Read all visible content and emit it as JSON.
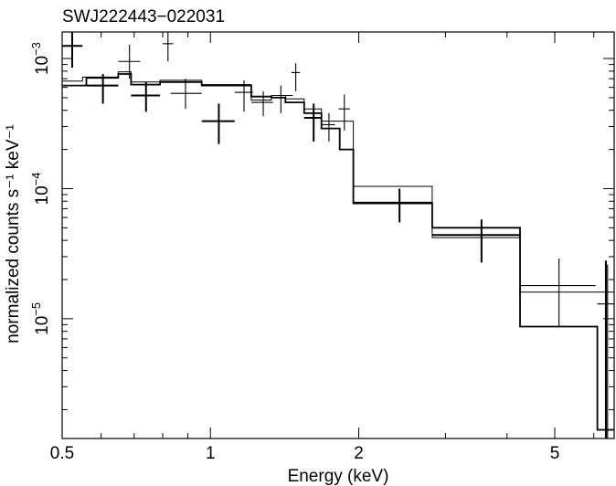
{
  "chart_data": {
    "type": "scatter",
    "title": "SWJ222443−022031",
    "xlabel": "Energy (keV)",
    "ylabel": "normalized counts s⁻¹ keV⁻¹",
    "x_scale": "log",
    "y_scale": "log",
    "xlim": [
      0.5,
      6.6
    ],
    "ylim": [
      1.2e-06,
      0.0016
    ],
    "grid": false,
    "x_ticks": [
      {
        "value": 0.5,
        "label": "0.5"
      },
      {
        "value": 1,
        "label": "1"
      },
      {
        "value": 2,
        "label": "2"
      },
      {
        "value": 5,
        "label": "5"
      }
    ],
    "y_ticks": [
      {
        "value": 0.001,
        "mantissa": "10",
        "exponent": "−3"
      },
      {
        "value": 0.0001,
        "mantissa": "10",
        "exponent": "−4"
      },
      {
        "value": 1e-05,
        "mantissa": "10",
        "exponent": "−5"
      }
    ],
    "series": [
      {
        "style": "thick",
        "points": [
          {
            "x": 0.524,
            "xlo": 0.5,
            "xhi": 0.55,
            "y": 0.00125,
            "ylo": 0.00085,
            "yhi": 0.0016
          },
          {
            "x": 0.605,
            "xlo": 0.56,
            "xhi": 0.65,
            "y": 0.00062,
            "ylo": 0.00045,
            "yhi": 0.00076
          },
          {
            "x": 0.74,
            "xlo": 0.69,
            "xhi": 0.79,
            "y": 0.00052,
            "ylo": 0.00039,
            "yhi": 0.00066
          },
          {
            "x": 1.04,
            "xlo": 0.96,
            "xhi": 1.12,
            "y": 0.00033,
            "ylo": 0.00022,
            "yhi": 0.00045
          },
          {
            "x": 1.62,
            "xlo": 1.55,
            "xhi": 1.68,
            "y": 0.00035,
            "ylo": 0.00023,
            "yhi": 0.00045
          },
          {
            "x": 2.42,
            "xlo": 1.95,
            "xhi": 2.82,
            "y": 7.8e-05,
            "ylo": 5.5e-05,
            "yhi": 0.0001
          },
          {
            "x": 3.55,
            "xlo": 2.82,
            "xhi": 4.25,
            "y": 4.4e-05,
            "ylo": 2.7e-05,
            "yhi": 5.8e-05
          },
          {
            "x": 6.35,
            "xlo": 6.35,
            "xhi": 6.35,
            "y": 1.2e-05,
            "ylo": 1.2e-06,
            "yhi": 2.8e-05
          }
        ]
      },
      {
        "style": "thin",
        "points": [
          {
            "x": 0.685,
            "xlo": 0.65,
            "xhi": 0.72,
            "y": 0.00095,
            "ylo": 0.0007,
            "yhi": 0.00128
          },
          {
            "x": 0.82,
            "xlo": 0.8,
            "xhi": 0.84,
            "y": 0.0013,
            "ylo": 0.00095,
            "yhi": 0.0016
          },
          {
            "x": 0.89,
            "xlo": 0.83,
            "xhi": 0.96,
            "y": 0.00054,
            "ylo": 0.00041,
            "yhi": 0.0007
          },
          {
            "x": 1.17,
            "xlo": 1.12,
            "xhi": 1.22,
            "y": 0.00055,
            "ylo": 0.00039,
            "yhi": 0.00068
          },
          {
            "x": 1.28,
            "xlo": 1.21,
            "xhi": 1.34,
            "y": 0.00046,
            "ylo": 0.00036,
            "yhi": 0.00056
          },
          {
            "x": 1.39,
            "xlo": 1.33,
            "xhi": 1.47,
            "y": 0.00052,
            "ylo": 0.00038,
            "yhi": 0.00062
          },
          {
            "x": 1.49,
            "xlo": 1.46,
            "xhi": 1.52,
            "y": 0.00078,
            "ylo": 0.00056,
            "yhi": 0.00092
          },
          {
            "x": 1.74,
            "xlo": 1.68,
            "xhi": 1.79,
            "y": 0.00031,
            "ylo": 0.00023,
            "yhi": 0.00038
          },
          {
            "x": 1.87,
            "xlo": 1.82,
            "xhi": 1.92,
            "y": 0.00041,
            "ylo": 0.00028,
            "yhi": 0.00053
          },
          {
            "x": 5.1,
            "xlo": 4.25,
            "xhi": 6.05,
            "y": 1.8e-05,
            "ylo": 8.8e-06,
            "yhi": 2.9e-05
          },
          {
            "x": 6.4,
            "xlo": 6.1,
            "xhi": 6.6,
            "y": 1.3e-05,
            "ylo": 1.2e-06,
            "yhi": 2.6e-05
          }
        ]
      }
    ],
    "models": [
      {
        "style": "thin",
        "edges": [
          0.5,
          0.55,
          0.65,
          0.69,
          0.79,
          0.96,
          1.21,
          1.33,
          1.42,
          1.55,
          1.68,
          1.95,
          2.82,
          4.25,
          6.6
        ],
        "values": [
          0.00067,
          0.00072,
          0.00079,
          0.00066,
          0.00068,
          0.00063,
          0.00048,
          0.00052,
          0.00049,
          0.00041,
          0.00033,
          0.000104,
          4.2e-05,
          1.6e-05
        ]
      },
      {
        "style": "thick",
        "edges": [
          0.5,
          0.56,
          0.65,
          0.69,
          0.79,
          0.96,
          1.21,
          1.33,
          1.42,
          1.55,
          1.68,
          1.83,
          1.95,
          2.82,
          4.25,
          6.1,
          6.6
        ],
        "values": [
          0.00062,
          0.00071,
          0.00076,
          0.00063,
          0.00066,
          0.00062,
          0.00051,
          0.0005,
          0.00046,
          0.00038,
          0.00029,
          0.0002,
          7.7e-05,
          5e-05,
          8.7e-06,
          1.4e-06
        ]
      }
    ]
  }
}
